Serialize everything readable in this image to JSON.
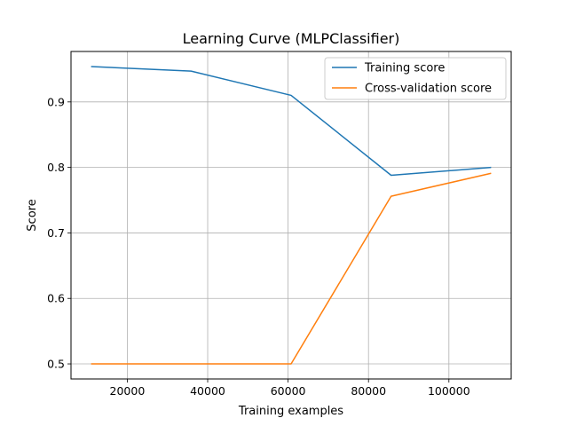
{
  "chart_data": {
    "type": "line",
    "title": "Learning Curve (MLPClassifier)",
    "xlabel": "Training examples",
    "ylabel": "Score",
    "xlim": [
      6005,
      115495
    ],
    "ylim": [
      0.477,
      0.977
    ],
    "xticks": [
      20000,
      40000,
      60000,
      80000,
      100000
    ],
    "xtick_labels": [
      "20000",
      "40000",
      "60000",
      "80000",
      "100000"
    ],
    "yticks": [
      0.5,
      0.6,
      0.7,
      0.8,
      0.9
    ],
    "ytick_labels": [
      "0.5",
      "0.6",
      "0.7",
      "0.8",
      "0.9"
    ],
    "grid": true,
    "legend_position": "top-right",
    "x": [
      11000,
      35875,
      60750,
      85625,
      110500
    ],
    "series": [
      {
        "name": "Training score",
        "color": "#1f77b4",
        "values": [
          0.954,
          0.947,
          0.91,
          0.788,
          0.8
        ]
      },
      {
        "name": "Cross-validation score",
        "color": "#ff7f0e",
        "values": [
          0.5,
          0.5,
          0.5,
          0.756,
          0.791
        ]
      }
    ]
  }
}
